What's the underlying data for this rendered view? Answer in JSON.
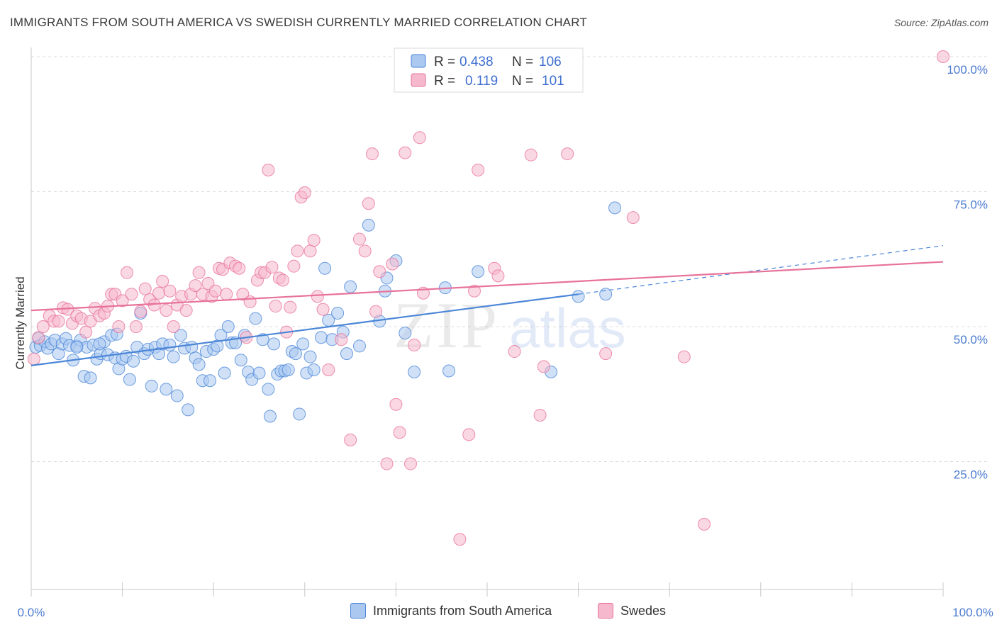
{
  "title": "IMMIGRANTS FROM SOUTH AMERICA VS SWEDISH CURRENTLY MARRIED CORRELATION CHART",
  "source": "Source: ZipAtlas.com",
  "colors": {
    "blue": "#4b86d8",
    "blue_fill": "#aac8f0",
    "pink": "#e8729a",
    "pink_fill": "#f5b8cc",
    "tick_text": "#4b7bd0",
    "grid": "#dcdcdc"
  },
  "legend_box": {
    "rows": [
      {
        "r_label": "R =",
        "r_value": "0.438",
        "n_label": "N =",
        "n_value": "106"
      },
      {
        "r_label": "R =",
        "r_value": "0.119",
        "n_label": "N =",
        "n_value": "101"
      }
    ]
  },
  "bottom_legend": {
    "series1": "Immigrants from South America",
    "series2": "Swedes"
  },
  "axis": {
    "ylabel": "Currently Married",
    "x_min_label": "0.0%",
    "x_max_label": "100.0%",
    "y_ticks": [
      "100.0%",
      "75.0%",
      "50.0%",
      "25.0%"
    ]
  },
  "watermark": {
    "part1": "ZIP",
    "part2": "atlas"
  },
  "chart_data": {
    "type": "scatter",
    "xlabel": "",
    "ylabel": "Currently Married",
    "xlim": [
      0,
      100
    ],
    "ylim": [
      0,
      100
    ],
    "y_ticks": [
      25,
      50,
      75,
      100
    ],
    "grid": "horizontal dashed",
    "legend_placement": "top-center",
    "series": [
      {
        "name": "Immigrants from South America",
        "color": "#4b86d8",
        "R": 0.438,
        "N": 106,
        "trend": {
          "x0": 0,
          "y0": 42.8,
          "x1": 60,
          "y1": 56.0,
          "dash_to_x": 100,
          "dash_to_y": 65.0
        },
        "points": [
          [
            0.5,
            46.2
          ],
          [
            0.8,
            47.8
          ],
          [
            1.0,
            46.5
          ],
          [
            1.5,
            47.2
          ],
          [
            1.8,
            46.0
          ],
          [
            2.2,
            46.8
          ],
          [
            2.6,
            47.5
          ],
          [
            3.0,
            45.0
          ],
          [
            3.4,
            46.8
          ],
          [
            3.8,
            47.8
          ],
          [
            4.2,
            46.5
          ],
          [
            4.6,
            43.8
          ],
          [
            5.0,
            46.4
          ],
          [
            5.4,
            47.5
          ],
          [
            5.8,
            40.8
          ],
          [
            6.1,
            46.2
          ],
          [
            6.5,
            40.5
          ],
          [
            6.8,
            46.6
          ],
          [
            7.2,
            44.0
          ],
          [
            7.6,
            45.0
          ],
          [
            8.0,
            47.2
          ],
          [
            8.4,
            44.8
          ],
          [
            8.8,
            48.4
          ],
          [
            9.2,
            44.2
          ],
          [
            9.6,
            42.2
          ],
          [
            10.0,
            44.0
          ],
          [
            10.4,
            44.5
          ],
          [
            10.8,
            40.2
          ],
          [
            11.2,
            43.6
          ],
          [
            11.6,
            46.2
          ],
          [
            12.0,
            52.5
          ],
          [
            12.4,
            45.0
          ],
          [
            12.8,
            45.8
          ],
          [
            13.2,
            39.0
          ],
          [
            13.6,
            46.2
          ],
          [
            14.0,
            45.0
          ],
          [
            14.4,
            46.8
          ],
          [
            14.8,
            38.4
          ],
          [
            15.2,
            46.6
          ],
          [
            15.6,
            44.4
          ],
          [
            16.0,
            37.2
          ],
          [
            16.4,
            48.4
          ],
          [
            16.8,
            46.0
          ],
          [
            17.2,
            34.6
          ],
          [
            17.6,
            46.2
          ],
          [
            18.0,
            44.2
          ],
          [
            18.4,
            43.0
          ],
          [
            18.8,
            40.0
          ],
          [
            19.2,
            45.4
          ],
          [
            19.6,
            40.0
          ],
          [
            20.0,
            45.8
          ],
          [
            20.4,
            46.4
          ],
          [
            20.8,
            48.4
          ],
          [
            21.2,
            41.4
          ],
          [
            21.6,
            50.0
          ],
          [
            22.0,
            47.0
          ],
          [
            22.4,
            47.0
          ],
          [
            23.0,
            43.8
          ],
          [
            23.4,
            48.4
          ],
          [
            23.8,
            41.6
          ],
          [
            24.2,
            40.2
          ],
          [
            24.6,
            51.5
          ],
          [
            25.0,
            41.4
          ],
          [
            25.4,
            47.6
          ],
          [
            26.0,
            38.4
          ],
          [
            26.2,
            33.4
          ],
          [
            26.6,
            46.8
          ],
          [
            27.0,
            41.2
          ],
          [
            27.4,
            41.8
          ],
          [
            27.8,
            41.8
          ],
          [
            28.2,
            42.0
          ],
          [
            28.6,
            45.4
          ],
          [
            29.0,
            45.0
          ],
          [
            29.4,
            33.8
          ],
          [
            29.8,
            46.8
          ],
          [
            30.2,
            41.4
          ],
          [
            30.6,
            44.4
          ],
          [
            31.0,
            42.0
          ],
          [
            31.8,
            48.0
          ],
          [
            32.2,
            60.8
          ],
          [
            32.6,
            51.2
          ],
          [
            33.0,
            47.6
          ],
          [
            33.6,
            52.5
          ],
          [
            34.2,
            49.0
          ],
          [
            34.6,
            45.0
          ],
          [
            35.0,
            57.4
          ],
          [
            36.0,
            46.4
          ],
          [
            37.0,
            68.8
          ],
          [
            38.2,
            51.0
          ],
          [
            38.8,
            56.6
          ],
          [
            39.0,
            59.0
          ],
          [
            40.0,
            62.2
          ],
          [
            41.0,
            48.8
          ],
          [
            42.0,
            41.6
          ],
          [
            45.4,
            57.2
          ],
          [
            45.8,
            41.8
          ],
          [
            49.0,
            60.2
          ],
          [
            57.0,
            41.6
          ],
          [
            60.0,
            55.6
          ],
          [
            63.0,
            56.0
          ],
          [
            64.0,
            72.0
          ],
          [
            5.0,
            46.2
          ],
          [
            7.5,
            46.8
          ],
          [
            9.4,
            48.6
          ]
        ]
      },
      {
        "name": "Swedes",
        "color": "#e8729a",
        "R": 0.119,
        "N": 101,
        "trend": {
          "x0": 0,
          "y0": 53.0,
          "x1": 100,
          "y1": 62.0
        },
        "points": [
          [
            0.3,
            44.0
          ],
          [
            0.8,
            48.0
          ],
          [
            1.3,
            50.0
          ],
          [
            2.0,
            52.0
          ],
          [
            2.5,
            51.0
          ],
          [
            3.0,
            51.0
          ],
          [
            3.5,
            53.5
          ],
          [
            4.0,
            53.2
          ],
          [
            4.5,
            50.6
          ],
          [
            5.0,
            52.0
          ],
          [
            5.5,
            51.5
          ],
          [
            6.0,
            49.0
          ],
          [
            6.5,
            51.0
          ],
          [
            7.0,
            53.4
          ],
          [
            7.5,
            52.0
          ],
          [
            8.0,
            52.5
          ],
          [
            8.4,
            53.8
          ],
          [
            8.8,
            56.0
          ],
          [
            9.2,
            56.0
          ],
          [
            9.6,
            50.0
          ],
          [
            10.0,
            54.8
          ],
          [
            10.5,
            60.0
          ],
          [
            11.0,
            56.0
          ],
          [
            11.5,
            50.0
          ],
          [
            12.0,
            52.8
          ],
          [
            12.5,
            57.0
          ],
          [
            13.0,
            55.0
          ],
          [
            13.5,
            54.0
          ],
          [
            14.0,
            56.2
          ],
          [
            14.4,
            58.4
          ],
          [
            14.8,
            53.0
          ],
          [
            15.2,
            56.6
          ],
          [
            15.6,
            50.0
          ],
          [
            16.0,
            54.0
          ],
          [
            16.5,
            55.6
          ],
          [
            17.0,
            53.0
          ],
          [
            17.5,
            56.0
          ],
          [
            18.0,
            57.6
          ],
          [
            18.4,
            60.0
          ],
          [
            18.8,
            56.0
          ],
          [
            19.4,
            58.0
          ],
          [
            19.8,
            55.6
          ],
          [
            20.2,
            56.6
          ],
          [
            20.6,
            60.8
          ],
          [
            21.0,
            60.6
          ],
          [
            21.4,
            56.0
          ],
          [
            21.8,
            61.8
          ],
          [
            22.4,
            61.2
          ],
          [
            22.8,
            60.8
          ],
          [
            23.2,
            56.0
          ],
          [
            23.6,
            48.0
          ],
          [
            24.0,
            54.6
          ],
          [
            24.8,
            58.6
          ],
          [
            25.2,
            60.0
          ],
          [
            25.6,
            60.0
          ],
          [
            26.0,
            79.0
          ],
          [
            26.4,
            61.0
          ],
          [
            26.8,
            53.8
          ],
          [
            27.2,
            59.0
          ],
          [
            27.6,
            58.6
          ],
          [
            28.0,
            49.0
          ],
          [
            28.4,
            53.6
          ],
          [
            28.8,
            61.2
          ],
          [
            29.2,
            64.0
          ],
          [
            29.6,
            74.0
          ],
          [
            30.0,
            74.8
          ],
          [
            30.6,
            64.0
          ],
          [
            31.0,
            66.0
          ],
          [
            31.4,
            55.6
          ],
          [
            32.0,
            53.2
          ],
          [
            32.6,
            42.0
          ],
          [
            34.0,
            47.6
          ],
          [
            35.0,
            29.0
          ],
          [
            36.0,
            66.2
          ],
          [
            36.6,
            64.0
          ],
          [
            37.0,
            72.8
          ],
          [
            37.4,
            82.0
          ],
          [
            37.8,
            52.8
          ],
          [
            38.2,
            60.2
          ],
          [
            39.0,
            24.6
          ],
          [
            39.6,
            61.6
          ],
          [
            40.0,
            35.6
          ],
          [
            40.4,
            30.4
          ],
          [
            41.0,
            82.2
          ],
          [
            41.6,
            24.6
          ],
          [
            42.0,
            46.6
          ],
          [
            42.6,
            85.0
          ],
          [
            43.0,
            56.2
          ],
          [
            47.0,
            10.6
          ],
          [
            48.0,
            30.0
          ],
          [
            48.6,
            56.6
          ],
          [
            49.0,
            79.0
          ],
          [
            50.8,
            60.8
          ],
          [
            51.2,
            59.4
          ],
          [
            53.0,
            45.4
          ],
          [
            54.8,
            81.8
          ],
          [
            55.8,
            33.6
          ],
          [
            56.2,
            42.6
          ],
          [
            58.8,
            82.0
          ],
          [
            63.0,
            45.0
          ],
          [
            66.0,
            70.2
          ],
          [
            71.6,
            44.4
          ],
          [
            73.8,
            13.4
          ],
          [
            100.0,
            100.0
          ]
        ]
      }
    ]
  }
}
